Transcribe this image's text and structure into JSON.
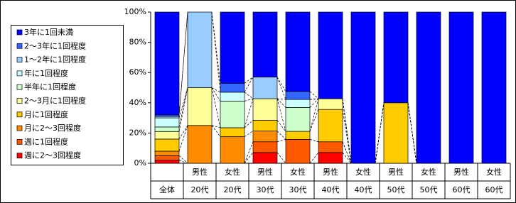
{
  "chart_data": {
    "type": "stacked-bar",
    "categories": [
      [
        "全体"
      ],
      [
        "男性",
        "20代"
      ],
      [
        "女性",
        "20代"
      ],
      [
        "男性",
        "30代"
      ],
      [
        "女性",
        "30代"
      ],
      [
        "男性",
        "40代"
      ],
      [
        "女性",
        "40代"
      ],
      [
        "男性",
        "50代"
      ],
      [
        "女性",
        "50代"
      ],
      [
        "男性",
        "60代"
      ],
      [
        "女性",
        "60代"
      ]
    ],
    "series": [
      {
        "name": "3年に1回未満",
        "color": "#0000ff",
        "values": [
          68,
          0,
          47.1,
          43,
          52.5,
          57.3,
          100,
          60,
          100,
          100,
          100
        ]
      },
      {
        "name": "2～3年に1回程度",
        "color": "#3366ff",
        "values": [
          1,
          0,
          5.9,
          0,
          5.3,
          0,
          0,
          0,
          0,
          0,
          0
        ]
      },
      {
        "name": "1～2年に1回程度",
        "color": "#99ccff",
        "values": [
          1,
          50,
          0,
          14.3,
          0,
          0,
          0,
          0,
          0,
          0,
          0
        ]
      },
      {
        "name": "年に1回程度",
        "color": "#ccffff",
        "values": [
          6,
          0,
          5.9,
          0,
          5.3,
          0,
          0,
          0,
          0,
          0,
          0
        ]
      },
      {
        "name": "半年に1回程度",
        "color": "#ccffcc",
        "values": [
          3,
          0,
          17.6,
          0,
          15.8,
          0,
          0,
          0,
          0,
          0,
          0
        ]
      },
      {
        "name": "2～3月に1回程度",
        "color": "#ffff99",
        "values": [
          5,
          25,
          0,
          14.3,
          0,
          7.1,
          0,
          0,
          0,
          0,
          0
        ]
      },
      {
        "name": "月に1回程度",
        "color": "#ffcc00",
        "values": [
          8,
          0,
          5.9,
          7.1,
          5.3,
          21.4,
          0,
          40,
          0,
          0,
          0
        ]
      },
      {
        "name": "月に2～3回程度",
        "color": "#ff8c00",
        "values": [
          3,
          25,
          17.6,
          7.1,
          0,
          0,
          0,
          0,
          0,
          0,
          0
        ]
      },
      {
        "name": "週に1回程度",
        "color": "#ff5a00",
        "values": [
          3,
          0,
          0,
          7.1,
          15.8,
          7.1,
          0,
          0,
          0,
          0,
          0
        ]
      },
      {
        "name": "週に2～3回程度",
        "color": "#ff0000",
        "values": [
          2,
          0,
          0,
          7.1,
          0,
          7.1,
          0,
          0,
          0,
          0,
          0
        ]
      }
    ],
    "ylim": [
      0,
      100
    ],
    "yticks": [
      {
        "value": 0,
        "label": "0%"
      },
      {
        "value": 20,
        "label": "20%"
      },
      {
        "value": 40,
        "label": "40%"
      },
      {
        "value": 60,
        "label": "60%"
      },
      {
        "value": 80,
        "label": "80%"
      },
      {
        "value": 100,
        "label": "100%"
      }
    ]
  }
}
